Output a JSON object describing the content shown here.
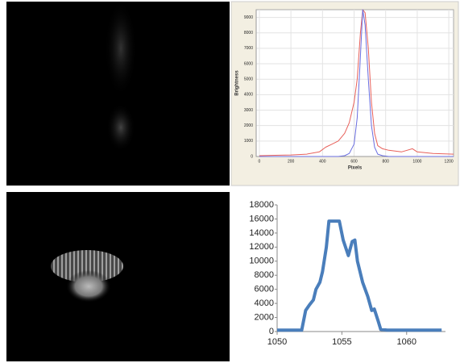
{
  "chart_data": [
    {
      "type": "line",
      "xlabel": "Pixels",
      "ylabel": "Brightness",
      "x": [
        0,
        100,
        200,
        300,
        380,
        420,
        460,
        500,
        540,
        570,
        600,
        620,
        640,
        655,
        670,
        690,
        710,
        730,
        750,
        780,
        820,
        900,
        970,
        1000,
        1100,
        1230
      ],
      "series": [
        {
          "color": "#e8605a",
          "values": [
            50,
            80,
            100,
            150,
            300,
            600,
            800,
            1000,
            1500,
            2200,
            3500,
            5000,
            8000,
            9500,
            9300,
            7000,
            3500,
            1500,
            700,
            500,
            400,
            300,
            500,
            300,
            200,
            150
          ]
        },
        {
          "color": "#6a6ee0",
          "values": [
            0,
            0,
            0,
            0,
            0,
            0,
            0,
            0,
            50,
            200,
            800,
            2500,
            6500,
            9500,
            8500,
            5000,
            2000,
            600,
            150,
            50,
            0,
            0,
            0,
            0,
            0,
            0
          ]
        }
      ],
      "xlim": [
        -20,
        1230
      ],
      "ylim": [
        0,
        9500
      ],
      "xticks": [
        0,
        200,
        400,
        600,
        800,
        1000,
        1200
      ],
      "yticks": [
        0,
        1000,
        2000,
        3000,
        4000,
        5000,
        6000,
        7000,
        8000,
        9000
      ],
      "grid": true
    },
    {
      "type": "line",
      "x": [
        1050,
        1051,
        1051.9,
        1052.2,
        1052.5,
        1052.8,
        1053,
        1053.3,
        1053.5,
        1053.8,
        1054,
        1054.8,
        1055.1,
        1055.5,
        1055.8,
        1056,
        1056.2,
        1056.6,
        1057,
        1057.3,
        1057.5,
        1057.8,
        1058,
        1058.5,
        1060,
        1062.7
      ],
      "series": [
        {
          "color": "#4a7ebb",
          "values": [
            200,
            200,
            200,
            3000,
            3800,
            4500,
            6000,
            7000,
            8500,
            12000,
            15700,
            15700,
            13000,
            10800,
            12800,
            13000,
            10000,
            7000,
            5000,
            3000,
            3200,
            1500,
            300,
            200,
            200,
            200
          ]
        }
      ],
      "xlim": [
        1050,
        1063
      ],
      "ylim": [
        0,
        18000
      ],
      "xticks": [
        1050,
        1055,
        1060
      ],
      "yticks": [
        0,
        2000,
        4000,
        6000,
        8000,
        10000,
        12000,
        14000,
        16000,
        18000
      ],
      "grid": false
    }
  ]
}
